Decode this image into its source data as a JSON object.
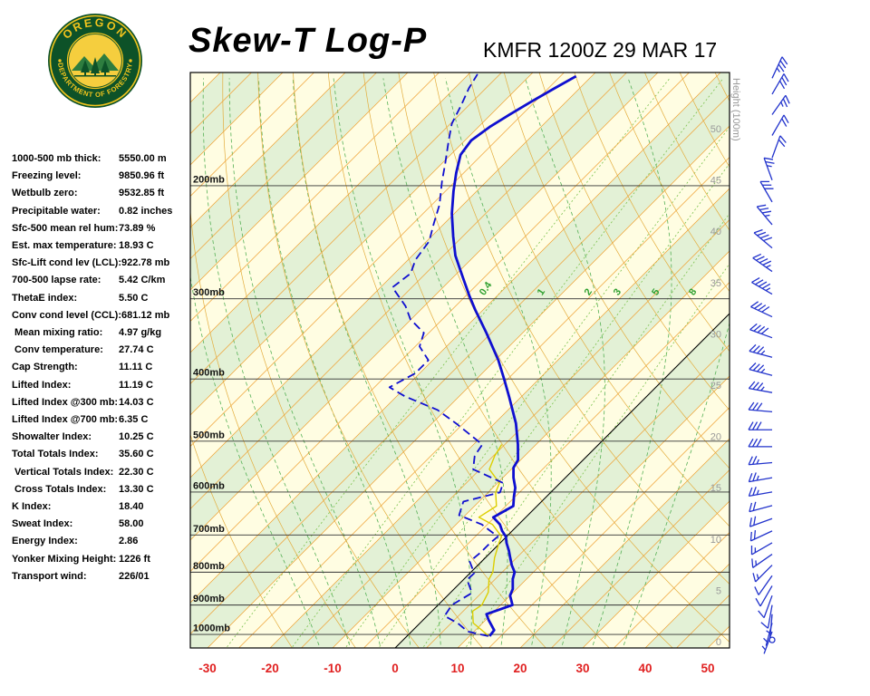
{
  "header": {
    "title": "Skew-T Log-P",
    "station_line": "KMFR 1200Z 29 MAR 17"
  },
  "logo": {
    "top_text": "OREGON",
    "bottom_text": "DEPARTMENT OF FORESTRY"
  },
  "stats": {
    "rows": [
      {
        "label": "1000-500 mb thick:",
        "value": "5550.00 m"
      },
      {
        "label": "Freezing level:",
        "value": "9850.96 ft"
      },
      {
        "label": "Wetbulb zero:",
        "value": "9532.85 ft"
      },
      {
        "label": "Precipitable water:",
        "value": "0.82 inches"
      },
      {
        "label": "Sfc-500 mean rel hum:",
        "value": "73.89 %"
      },
      {
        "label": "Est. max temperature:",
        "value": "18.93 C"
      },
      {
        "label": "Sfc-Lift cond lev (LCL):",
        "value": "922.78 mb"
      },
      {
        "label": "700-500 lapse rate:",
        "value": "5.42 C/km"
      },
      {
        "label": "ThetaE index:",
        "value": "5.50 C"
      },
      {
        "label": "Conv cond level (CCL):",
        "value": "681.12 mb"
      },
      {
        "label": " Mean mixing ratio:",
        "value": "4.97 g/kg"
      },
      {
        "label": " Conv temperature:",
        "value": "27.74 C"
      },
      {
        "label": "Cap Strength:",
        "value": "11.11 C"
      },
      {
        "label": "Lifted Index:",
        "value": "11.19 C"
      },
      {
        "label": "Lifted Index @300 mb:",
        "value": "14.03 C"
      },
      {
        "label": "Lifted Index @700 mb:",
        "value": "6.35 C"
      },
      {
        "label": "Showalter Index:",
        "value": "10.25 C"
      },
      {
        "label": "Total Totals Index:",
        "value": "35.60 C"
      },
      {
        "label": " Vertical Totals Index:",
        "value": "22.30 C"
      },
      {
        "label": " Cross Totals Index:",
        "value": "13.30 C"
      },
      {
        "label": "K Index:",
        "value": "18.40"
      },
      {
        "label": "Sweat Index:",
        "value": "58.00"
      },
      {
        "label": "Energy Index:",
        "value": "2.86"
      },
      {
        "label": "Yonker Mixing Height:",
        "value": "1226 ft"
      },
      {
        "label": "Transport wind:",
        "value": "226/01"
      }
    ]
  },
  "chart_data": {
    "type": "skew-t-log-p",
    "station": "KMFR",
    "valid_time": "1200Z 29 MAR 17",
    "pressure_gridlines_mb": [
      200,
      300,
      400,
      500,
      600,
      700,
      800,
      900,
      1000
    ],
    "pressure_label_suffix": "mb",
    "temp_axis_c": [
      -30,
      -20,
      -10,
      0,
      10,
      20,
      30,
      40,
      50
    ],
    "height_axis_label": "Height (100m)",
    "height_ticks_100m": [
      50,
      45,
      40,
      35,
      30,
      25,
      20,
      15,
      10,
      5,
      0
    ],
    "mixing_ratio_lines_gkg": [
      0.4,
      1,
      2,
      3,
      5,
      8
    ],
    "temperature_profile_p_c": [
      [
        1006,
        13.2
      ],
      [
        985,
        13.0
      ],
      [
        950,
        10.5
      ],
      [
        930,
        9.2
      ],
      [
        900,
        11.9
      ],
      [
        870,
        10.0
      ],
      [
        850,
        9.4
      ],
      [
        820,
        7.8
      ],
      [
        800,
        7.0
      ],
      [
        780,
        5.4
      ],
      [
        760,
        4.0
      ],
      [
        740,
        2.6
      ],
      [
        720,
        1.0
      ],
      [
        704,
        -0.1
      ],
      [
        690,
        -1.6
      ],
      [
        674,
        -3.0
      ],
      [
        657,
        -5.2
      ],
      [
        631,
        -3.8
      ],
      [
        610,
        -5.2
      ],
      [
        591,
        -6.4
      ],
      [
        570,
        -8.3
      ],
      [
        550,
        -9.9
      ],
      [
        535,
        -10.4
      ],
      [
        506,
        -12.9
      ],
      [
        469,
        -16.6
      ],
      [
        426,
        -22.0
      ],
      [
        402,
        -25.3
      ],
      [
        374,
        -29.5
      ],
      [
        339,
        -35.8
      ],
      [
        312,
        -41.3
      ],
      [
        297,
        -44.4
      ],
      [
        278,
        -48.4
      ],
      [
        257,
        -53.1
      ],
      [
        240,
        -56.5
      ],
      [
        221,
        -60.4
      ],
      [
        204,
        -63.7
      ],
      [
        191,
        -66.2
      ],
      [
        179,
        -68.4
      ],
      [
        170,
        -69.0
      ],
      [
        162,
        -68.2
      ],
      [
        155,
        -67.0
      ],
      [
        148,
        -65.6
      ],
      [
        141,
        -64.0
      ],
      [
        135,
        -62.5
      ]
    ],
    "dewpoint_profile_p_c": [
      [
        1006,
        13.0
      ],
      [
        990,
        9.0
      ],
      [
        961,
        6.1
      ],
      [
        936,
        2.8
      ],
      [
        900,
        2.2
      ],
      [
        862,
        3.5
      ],
      [
        822,
        0.6
      ],
      [
        803,
        0.7
      ],
      [
        770,
        -1.9
      ],
      [
        745,
        -1.6
      ],
      [
        721,
        -1.6
      ],
      [
        704,
        -1.4
      ],
      [
        674,
        -5.9
      ],
      [
        652,
        -11.0
      ],
      [
        621,
        -12.5
      ],
      [
        601,
        -8.1
      ],
      [
        581,
        -9.1
      ],
      [
        553,
        -16.1
      ],
      [
        527,
        -18.0
      ],
      [
        506,
        -18.6
      ],
      [
        469,
        -26.2
      ],
      [
        447,
        -31.3
      ],
      [
        426,
        -38.6
      ],
      [
        412,
        -42.6
      ],
      [
        392,
        -40.7
      ],
      [
        374,
        -40.7
      ],
      [
        356,
        -44.3
      ],
      [
        339,
        -45.8
      ],
      [
        323,
        -50.1
      ],
      [
        308,
        -53.0
      ],
      [
        288,
        -58.1
      ],
      [
        274,
        -57.4
      ],
      [
        261,
        -58.8
      ],
      [
        244,
        -59.6
      ],
      [
        229,
        -61.7
      ],
      [
        214,
        -63.8
      ],
      [
        197,
        -67.1
      ],
      [
        185,
        -69.4
      ],
      [
        170,
        -72.6
      ],
      [
        160,
        -74.8
      ],
      [
        150,
        -76.2
      ],
      [
        141,
        -77.7
      ],
      [
        134,
        -78.6
      ]
    ],
    "wetbulb_profile_p_c": [
      [
        1006,
        13.1
      ],
      [
        960,
        8.5
      ],
      [
        920,
        6.5
      ],
      [
        900,
        7.0
      ],
      [
        860,
        6.0
      ],
      [
        820,
        4.0
      ],
      [
        800,
        3.5
      ],
      [
        760,
        1.5
      ],
      [
        720,
        -0.2
      ],
      [
        704,
        -0.8
      ],
      [
        674,
        -4.2
      ],
      [
        657,
        -7.5
      ],
      [
        631,
        -6.5
      ],
      [
        601,
        -8.8
      ],
      [
        581,
        -9.7
      ],
      [
        553,
        -13.5
      ],
      [
        527,
        -14.8
      ],
      [
        506,
        -15.5
      ]
    ],
    "winds_p_dir_spd": [
      [
        1020,
        226,
        1
      ],
      [
        990,
        200,
        4
      ],
      [
        960,
        195,
        5
      ],
      [
        930,
        185,
        5
      ],
      [
        900,
        190,
        8
      ],
      [
        870,
        200,
        10
      ],
      [
        840,
        210,
        10
      ],
      [
        810,
        215,
        12
      ],
      [
        780,
        225,
        15
      ],
      [
        750,
        235,
        15
      ],
      [
        720,
        240,
        15
      ],
      [
        690,
        245,
        20
      ],
      [
        660,
        250,
        20
      ],
      [
        630,
        255,
        20
      ],
      [
        600,
        260,
        25
      ],
      [
        570,
        260,
        25
      ],
      [
        540,
        265,
        25
      ],
      [
        510,
        270,
        30
      ],
      [
        480,
        270,
        30
      ],
      [
        450,
        275,
        30
      ],
      [
        420,
        280,
        35
      ],
      [
        395,
        285,
        35
      ],
      [
        370,
        285,
        35
      ],
      [
        345,
        290,
        40
      ],
      [
        320,
        295,
        40
      ],
      [
        295,
        300,
        45
      ],
      [
        272,
        305,
        45
      ],
      [
        250,
        310,
        40
      ],
      [
        230,
        320,
        35
      ],
      [
        212,
        330,
        30
      ],
      [
        196,
        340,
        25
      ],
      [
        181,
        20,
        20
      ],
      [
        167,
        30,
        20
      ],
      [
        155,
        35,
        25
      ],
      [
        144,
        30,
        30
      ],
      [
        136,
        25,
        35
      ]
    ]
  },
  "colors": {
    "background": "#FFFDE2",
    "band_green": "#E3F1D6",
    "isotherm": "#F0A030",
    "dry_adiabat": "#E3AC3C",
    "moist_adiabat": "#55B055",
    "mixing_line": "#7CC24E",
    "mixing_label": "#2FA02F",
    "gridline": "#333333",
    "zero_isotherm": "#000000",
    "temperature_trace": "#0F0FD0",
    "dewpoint_trace": "#0F0FD0",
    "wetbulb_trace": "#DCCE00",
    "wind_barb": "#2233CC",
    "temp_axis_label": "#E02020",
    "height_label": "#999999",
    "pressure_label": "#111111"
  }
}
